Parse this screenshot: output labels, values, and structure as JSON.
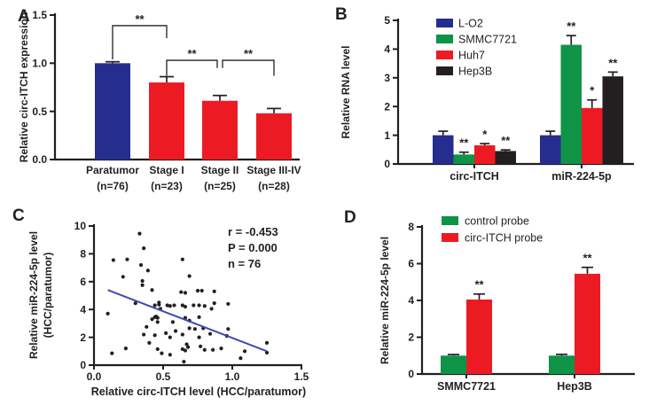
{
  "figure": {
    "background": "#ffffff",
    "text_color": "#231F20"
  },
  "panels": {
    "a": {
      "label": "A"
    },
    "b": {
      "label": "B"
    },
    "c": {
      "label": "C"
    },
    "d": {
      "label": "D"
    }
  },
  "chart_data": [
    {
      "panel": "A",
      "type": "bar",
      "ylabel": "Relative circ-ITCH expression",
      "ylim": [
        0,
        1.5
      ],
      "yticks": [
        "0.0",
        "0.5",
        "1.0",
        "1.5"
      ],
      "categories": [
        "Paratumor",
        "Stage I",
        "Stage II",
        "Stage III-IV"
      ],
      "sublabels": [
        "(n=76)",
        "(n=23)",
        "(n=25)",
        "(n=28)"
      ],
      "values": [
        1.0,
        0.8,
        0.61,
        0.48
      ],
      "errors": [
        0.015,
        0.06,
        0.055,
        0.05
      ],
      "bar_colors": [
        "#252D8E",
        "#EC1B23",
        "#EC1B23",
        "#EC1B23"
      ],
      "significance_brackets": [
        {
          "from": 0,
          "to": 1,
          "label": "**",
          "top": 1.39,
          "from_drop_to": 1.04,
          "to_drop_to": 1.26
        },
        {
          "from": 1,
          "to": 2,
          "label": "**",
          "top": 1.03,
          "from_drop_to": 0.87,
          "to_drop_to": 0.95
        },
        {
          "from": 2,
          "to": 3,
          "label": "**",
          "top": 1.03,
          "from_drop_to": 0.95,
          "to_drop_to": 0.87
        }
      ]
    },
    {
      "panel": "B",
      "type": "grouped_bar",
      "ylabel": "Relative RNA level",
      "ylim": [
        0,
        5
      ],
      "yticks": [
        "0",
        "1",
        "2",
        "3",
        "4",
        "5"
      ],
      "categories": [
        "circ-ITCH",
        "miR-224-5p"
      ],
      "legend_position": "top-left",
      "series": [
        {
          "name": "L-O2",
          "color": "#252D8E",
          "values": [
            1.0,
            1.0
          ],
          "errors": [
            0.14,
            0.14
          ],
          "sig": [
            "",
            ""
          ]
        },
        {
          "name": "SMMC7721",
          "color": "#0E9347",
          "values": [
            0.33,
            4.15
          ],
          "errors": [
            0.08,
            0.32
          ],
          "sig": [
            "**",
            "**"
          ]
        },
        {
          "name": "Huh7",
          "color": "#EC1B23",
          "values": [
            0.65,
            1.95
          ],
          "errors": [
            0.06,
            0.28
          ],
          "sig": [
            "*",
            "*"
          ]
        },
        {
          "name": "Hep3B",
          "color": "#231F20",
          "values": [
            0.45,
            3.05
          ],
          "errors": [
            0.04,
            0.15
          ],
          "sig": [
            "**",
            "**"
          ]
        }
      ]
    },
    {
      "panel": "C",
      "type": "scatter",
      "xlabel": "Relative circ-ITCH level (HCC/paratumor)",
      "ylabel_lines": [
        "Relative miR-224-5p level",
        "(HCC/paratumor)"
      ],
      "xlim": [
        0,
        1.5
      ],
      "ylim": [
        0,
        10
      ],
      "xticks": [
        "0.0",
        "0.5",
        "1.0",
        "1.5"
      ],
      "yticks": [
        "0",
        "2",
        "4",
        "6",
        "8",
        "10"
      ],
      "annotation": {
        "r": "r = -0.453",
        "p": "P = 0.000",
        "n": "n = 76"
      },
      "point_color": "#231F20",
      "trend_line": {
        "x1": 0.1,
        "y1": 5.4,
        "x2": 1.25,
        "y2": 1.0,
        "color": "#3B4BB2"
      },
      "points": [
        [
          0.33,
          9.45
        ],
        [
          0.36,
          8.4
        ],
        [
          0.14,
          7.55
        ],
        [
          0.24,
          7.6
        ],
        [
          0.34,
          7.2
        ],
        [
          0.64,
          7.6
        ],
        [
          0.39,
          6.8
        ],
        [
          0.21,
          6.35
        ],
        [
          0.69,
          6.4
        ],
        [
          0.35,
          6.05
        ],
        [
          0.35,
          5.75
        ],
        [
          0.42,
          5.4
        ],
        [
          0.63,
          5.25
        ],
        [
          0.66,
          5.2
        ],
        [
          0.75,
          5.35
        ],
        [
          0.78,
          5.35
        ],
        [
          0.87,
          5.3
        ],
        [
          0.3,
          4.45
        ],
        [
          0.44,
          4.3
        ],
        [
          0.47,
          4.35
        ],
        [
          0.48,
          4.05
        ],
        [
          0.53,
          4.3
        ],
        [
          0.55,
          4.25
        ],
        [
          0.64,
          4.3
        ],
        [
          0.66,
          4.2
        ],
        [
          0.76,
          4.3
        ],
        [
          0.8,
          4.25
        ],
        [
          0.87,
          4.45
        ],
        [
          0.85,
          4.05
        ],
        [
          0.97,
          4.4
        ],
        [
          0.1,
          3.7
        ],
        [
          0.42,
          3.3
        ],
        [
          0.44,
          3.45
        ],
        [
          0.46,
          3.1
        ],
        [
          0.57,
          3.1
        ],
        [
          0.66,
          3.4
        ],
        [
          0.69,
          3.2
        ],
        [
          0.76,
          3.45
        ],
        [
          0.38,
          2.75
        ],
        [
          0.59,
          2.45
        ],
        [
          0.69,
          2.65
        ],
        [
          0.79,
          2.65
        ],
        [
          0.84,
          2.25
        ],
        [
          0.97,
          2.6
        ],
        [
          0.36,
          2.2
        ],
        [
          0.44,
          2.15
        ],
        [
          0.55,
          2.0
        ],
        [
          0.64,
          2.2
        ],
        [
          0.96,
          2.1
        ],
        [
          0.23,
          1.2
        ],
        [
          0.67,
          1.5
        ],
        [
          0.68,
          1.3
        ],
        [
          0.77,
          1.35
        ],
        [
          0.8,
          1.1
        ],
        [
          0.13,
          0.85
        ],
        [
          0.46,
          1.15
        ],
        [
          0.49,
          0.85
        ],
        [
          0.55,
          0.75
        ],
        [
          0.64,
          1.15
        ],
        [
          0.66,
          1.05
        ],
        [
          0.86,
          1.1
        ],
        [
          0.92,
          1.2
        ],
        [
          1.09,
          1.0
        ],
        [
          1.25,
          1.6
        ],
        [
          1.25,
          0.9
        ],
        [
          0.65,
          0.25
        ],
        [
          1.06,
          0.5
        ],
        [
          0.47,
          4.5
        ],
        [
          0.52,
          2.3
        ],
        [
          0.73,
          2.6
        ],
        [
          0.76,
          2.0
        ],
        [
          0.58,
          4.3
        ],
        [
          0.45,
          3.5
        ],
        [
          0.46,
          3.4
        ],
        [
          0.72,
          4.3
        ],
        [
          0.4,
          1.6
        ]
      ]
    },
    {
      "panel": "D",
      "type": "grouped_bar",
      "ylabel": "Relative miR-224-5p level",
      "ylim": [
        0,
        8
      ],
      "yticks": [
        "0",
        "2",
        "4",
        "6",
        "8"
      ],
      "categories": [
        "SMMC7721",
        "Hep3B"
      ],
      "legend_position": "top-left",
      "series": [
        {
          "name": "control probe",
          "color": "#0E9347",
          "values": [
            1.0,
            1.0
          ],
          "errors": [
            0.06,
            0.07
          ],
          "sig": [
            "",
            ""
          ]
        },
        {
          "name": "circ-ITCH probe",
          "color": "#EC1B23",
          "values": [
            4.05,
            5.45
          ],
          "errors": [
            0.3,
            0.35
          ],
          "sig": [
            "**",
            "**"
          ]
        }
      ]
    }
  ]
}
